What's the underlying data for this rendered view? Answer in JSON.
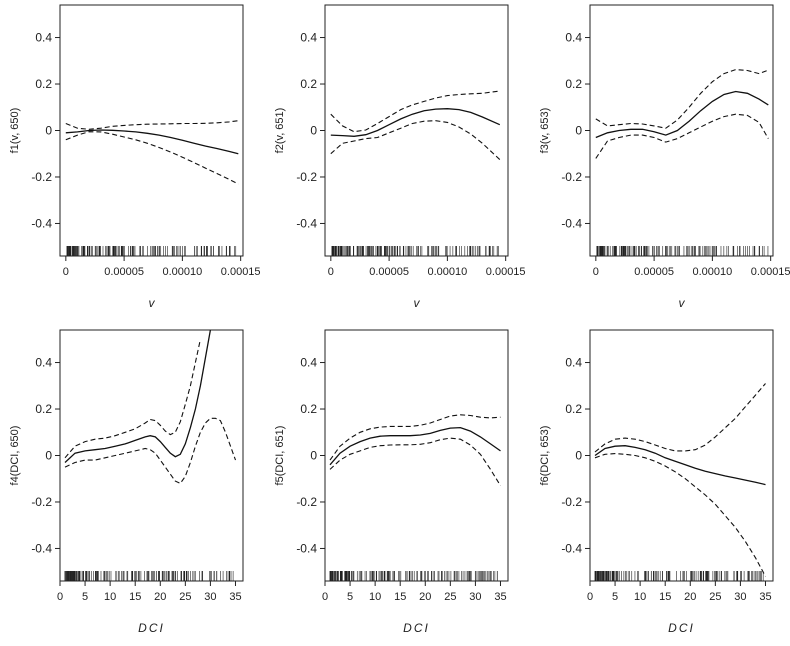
{
  "chart_data": [
    {
      "type": "line",
      "panel": "p1",
      "ylabel": "f1(v, 650)",
      "xlabel": "v",
      "xlim": [
        -5e-06,
        0.000152
      ],
      "ylim": [
        -0.54,
        0.54
      ],
      "xticks": [
        0,
        5e-05,
        0.0001,
        0.00015
      ],
      "xtick_labels": [
        "0",
        "0.00005",
        "0.00010",
        "0.00015"
      ],
      "yticks": [
        -0.4,
        -0.2,
        0,
        0.2,
        0.4
      ],
      "ytick_labels": [
        "-0.4",
        "-0.2",
        "0",
        "0.2",
        "0.4"
      ],
      "x": [
        0,
        1e-05,
        2e-05,
        3e-05,
        4e-05,
        5e-05,
        6e-05,
        7e-05,
        8e-05,
        9e-05,
        0.0001,
        0.00011,
        0.00012,
        0.00013,
        0.00014,
        0.000148
      ],
      "series": [
        {
          "role": "fit",
          "values": [
            -0.01,
            -0.006,
            0,
            0.002,
            0.001,
            -0.002,
            -0.006,
            -0.012,
            -0.02,
            -0.03,
            -0.042,
            -0.055,
            -0.067,
            -0.078,
            -0.09,
            -0.1
          ]
        },
        {
          "role": "upper",
          "values": [
            0.03,
            0.01,
            0.005,
            0.01,
            0.018,
            0.022,
            0.025,
            0.027,
            0.028,
            0.029,
            0.03,
            0.03,
            0.031,
            0.033,
            0.037,
            0.042
          ]
        },
        {
          "role": "lower",
          "values": [
            -0.04,
            -0.02,
            -0.005,
            -0.006,
            -0.016,
            -0.028,
            -0.04,
            -0.055,
            -0.073,
            -0.093,
            -0.115,
            -0.138,
            -0.162,
            -0.186,
            -0.21,
            -0.23
          ]
        }
      ],
      "rug_range": [
        1e-06,
        0.000148
      ]
    },
    {
      "type": "line",
      "panel": "p2",
      "ylabel": "f2(v, 651)",
      "xlabel": "v",
      "xlim": [
        -5e-06,
        0.000152
      ],
      "ylim": [
        -0.54,
        0.54
      ],
      "xticks": [
        0,
        5e-05,
        0.0001,
        0.00015
      ],
      "xtick_labels": [
        "0",
        "0.00005",
        "0.00010",
        "0.00015"
      ],
      "yticks": [
        -0.4,
        -0.2,
        0,
        0.2,
        0.4
      ],
      "ytick_labels": [
        "-0.4",
        "-0.2",
        "0",
        "0.2",
        "0.4"
      ],
      "x": [
        0,
        1e-05,
        2e-05,
        3e-05,
        4e-05,
        5e-05,
        6e-05,
        7e-05,
        8e-05,
        9e-05,
        0.0001,
        0.00011,
        0.00012,
        0.00013,
        0.000145
      ],
      "series": [
        {
          "role": "fit",
          "values": [
            -0.02,
            -0.022,
            -0.025,
            -0.018,
            0,
            0.025,
            0.05,
            0.07,
            0.085,
            0.092,
            0.094,
            0.09,
            0.078,
            0.058,
            0.025
          ]
        },
        {
          "role": "upper",
          "values": [
            0.07,
            0.02,
            -0.005,
            0.002,
            0.03,
            0.06,
            0.09,
            0.11,
            0.125,
            0.14,
            0.15,
            0.155,
            0.158,
            0.16,
            0.17
          ]
        },
        {
          "role": "lower",
          "values": [
            -0.1,
            -0.055,
            -0.045,
            -0.035,
            -0.03,
            -0.01,
            0.01,
            0.03,
            0.04,
            0.042,
            0.035,
            0.015,
            -0.015,
            -0.055,
            -0.125
          ]
        }
      ],
      "rug_range": [
        1e-06,
        0.000145
      ]
    },
    {
      "type": "line",
      "panel": "p3",
      "ylabel": "f3(v, 653)",
      "xlabel": "v",
      "xlim": [
        -5e-06,
        0.000152
      ],
      "ylim": [
        -0.54,
        0.54
      ],
      "xticks": [
        0,
        5e-05,
        0.0001,
        0.00015
      ],
      "xtick_labels": [
        "0",
        "0.00005",
        "0.00010",
        "0.00015"
      ],
      "yticks": [
        -0.4,
        -0.2,
        0,
        0.2,
        0.4
      ],
      "ytick_labels": [
        "-0.4",
        "-0.2",
        "0",
        "0.2",
        "0.4"
      ],
      "x": [
        0,
        1e-05,
        2e-05,
        3e-05,
        4e-05,
        5e-05,
        6e-05,
        7e-05,
        8e-05,
        9e-05,
        0.0001,
        0.00011,
        0.00012,
        0.00013,
        0.00014,
        0.000148
      ],
      "series": [
        {
          "role": "fit",
          "values": [
            -0.03,
            -0.01,
            0,
            0.005,
            0.005,
            -0.005,
            -0.02,
            0,
            0.04,
            0.085,
            0.125,
            0.155,
            0.168,
            0.16,
            0.135,
            0.11
          ]
        },
        {
          "role": "upper",
          "values": [
            0.05,
            0.02,
            0.025,
            0.03,
            0.028,
            0.02,
            0.01,
            0.045,
            0.1,
            0.16,
            0.21,
            0.245,
            0.262,
            0.258,
            0.245,
            0.26
          ]
        },
        {
          "role": "lower",
          "values": [
            -0.12,
            -0.045,
            -0.03,
            -0.02,
            -0.02,
            -0.03,
            -0.05,
            -0.035,
            -0.01,
            0.015,
            0.04,
            0.06,
            0.07,
            0.065,
            0.035,
            -0.035
          ]
        }
      ],
      "rug_range": [
        1e-06,
        0.000148
      ]
    },
    {
      "type": "line",
      "panel": "p4",
      "ylabel": "f4(DCI, 650)",
      "xlabel": "DCI",
      "xlim": [
        0,
        36.5
      ],
      "ylim": [
        -0.54,
        0.54
      ],
      "xticks": [
        0,
        5,
        10,
        15,
        20,
        25,
        30,
        35
      ],
      "xtick_labels": [
        "0",
        "5",
        "10",
        "15",
        "20",
        "25",
        "30",
        "35"
      ],
      "yticks": [
        -0.4,
        -0.2,
        0,
        0.2,
        0.4
      ],
      "ytick_labels": [
        "-0.4",
        "-0.2",
        "0",
        "0.2",
        "0.4"
      ],
      "x": [
        1,
        3,
        5,
        7,
        9,
        11,
        13,
        15,
        17,
        18,
        19,
        20,
        21,
        22,
        23,
        24,
        25,
        26,
        27,
        28,
        29,
        30,
        31,
        32,
        33,
        34,
        35
      ],
      "series": [
        {
          "role": "fit",
          "values": [
            -0.03,
            0.01,
            0.02,
            0.025,
            0.03,
            0.04,
            0.05,
            0.065,
            0.08,
            0.085,
            0.08,
            0.06,
            0.035,
            0.01,
            -0.005,
            0.005,
            0.05,
            0.12,
            0.2,
            0.3,
            0.42,
            0.54,
            null,
            null,
            null,
            null,
            null
          ]
        },
        {
          "role": "upper",
          "values": [
            -0.01,
            0.04,
            0.06,
            0.07,
            0.075,
            0.085,
            0.1,
            0.115,
            0.14,
            0.155,
            0.15,
            0.13,
            0.105,
            0.09,
            0.1,
            0.145,
            0.22,
            0.3,
            0.4,
            0.5,
            null,
            null,
            null,
            null,
            null,
            null,
            null
          ]
        },
        {
          "role": "lower",
          "values": [
            -0.05,
            -0.03,
            -0.02,
            -0.02,
            -0.01,
            0,
            0.01,
            0.02,
            0.03,
            0.025,
            0.01,
            -0.02,
            -0.05,
            -0.08,
            -0.11,
            -0.12,
            -0.09,
            -0.03,
            0.04,
            0.1,
            0.14,
            0.16,
            0.16,
            0.15,
            0.1,
            0.04,
            -0.02
          ]
        }
      ],
      "rug_range": [
        1,
        35
      ]
    },
    {
      "type": "line",
      "panel": "p5",
      "ylabel": "f5(DCI, 651)",
      "xlabel": "DCI",
      "xlim": [
        0,
        36.5
      ],
      "ylim": [
        -0.54,
        0.54
      ],
      "xticks": [
        0,
        5,
        10,
        15,
        20,
        25,
        30,
        35
      ],
      "xtick_labels": [
        "0",
        "5",
        "10",
        "15",
        "20",
        "25",
        "30",
        "35"
      ],
      "yticks": [
        -0.4,
        -0.2,
        0,
        0.2,
        0.4
      ],
      "ytick_labels": [
        "-0.4",
        "-0.2",
        "0",
        "0.2",
        "0.4"
      ],
      "x": [
        1,
        3,
        5,
        7,
        9,
        11,
        13,
        15,
        17,
        19,
        21,
        23,
        25,
        27,
        29,
        31,
        33,
        35
      ],
      "series": [
        {
          "role": "fit",
          "values": [
            -0.04,
            0.01,
            0.04,
            0.06,
            0.075,
            0.083,
            0.085,
            0.085,
            0.085,
            0.088,
            0.095,
            0.108,
            0.118,
            0.12,
            0.105,
            0.08,
            0.05,
            0.02
          ]
        },
        {
          "role": "upper",
          "values": [
            -0.02,
            0.04,
            0.075,
            0.1,
            0.115,
            0.122,
            0.125,
            0.125,
            0.125,
            0.13,
            0.14,
            0.155,
            0.17,
            0.175,
            0.172,
            0.165,
            0.162,
            0.165
          ]
        },
        {
          "role": "lower",
          "values": [
            -0.06,
            -0.02,
            0.005,
            0.02,
            0.035,
            0.042,
            0.045,
            0.046,
            0.046,
            0.048,
            0.055,
            0.068,
            0.075,
            0.07,
            0.045,
            0.005,
            -0.06,
            -0.13
          ]
        }
      ],
      "rug_range": [
        1,
        35
      ]
    },
    {
      "type": "line",
      "panel": "p6",
      "ylabel": "f6(DCI, 653)",
      "xlabel": "DCI",
      "xlim": [
        0,
        36.5
      ],
      "ylim": [
        -0.54,
        0.54
      ],
      "xticks": [
        0,
        5,
        10,
        15,
        20,
        25,
        30,
        35
      ],
      "xtick_labels": [
        "0",
        "5",
        "10",
        "15",
        "20",
        "25",
        "30",
        "35"
      ],
      "yticks": [
        -0.4,
        -0.2,
        0,
        0.2,
        0.4
      ],
      "ytick_labels": [
        "-0.4",
        "-0.2",
        "0",
        "0.2",
        "0.4"
      ],
      "x": [
        1,
        3,
        5,
        7,
        9,
        11,
        13,
        15,
        17,
        19,
        21,
        23,
        25,
        27,
        29,
        31,
        33,
        35
      ],
      "series": [
        {
          "role": "fit",
          "values": [
            0,
            0.03,
            0.04,
            0.042,
            0.035,
            0.025,
            0.01,
            -0.01,
            -0.025,
            -0.04,
            -0.055,
            -0.068,
            -0.078,
            -0.088,
            -0.097,
            -0.106,
            -0.115,
            -0.125
          ]
        },
        {
          "role": "upper",
          "values": [
            0.015,
            0.05,
            0.07,
            0.075,
            0.07,
            0.06,
            0.045,
            0.03,
            0.02,
            0.02,
            0.025,
            0.045,
            0.08,
            0.12,
            0.16,
            0.21,
            0.26,
            0.31
          ]
        },
        {
          "role": "lower",
          "values": [
            -0.01,
            0.005,
            0.008,
            0.005,
            0,
            -0.01,
            -0.025,
            -0.045,
            -0.07,
            -0.1,
            -0.135,
            -0.17,
            -0.21,
            -0.26,
            -0.31,
            -0.37,
            -0.44,
            -0.52
          ]
        }
      ],
      "rug_range": [
        1,
        35
      ]
    }
  ]
}
